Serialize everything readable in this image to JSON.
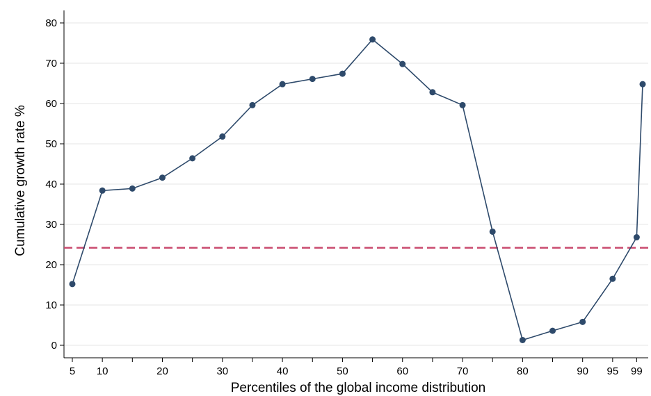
{
  "chart_data": {
    "type": "line",
    "xlabel": "Percentiles of the global income distribution",
    "ylabel": "Cumulative growth rate %",
    "xlim": [
      4,
      100
    ],
    "ylim": [
      0,
      80
    ],
    "yticks": [
      0,
      10,
      20,
      30,
      40,
      50,
      60,
      70,
      80
    ],
    "xticks": [
      {
        "value": 5,
        "label": "5"
      },
      {
        "value": 10,
        "label": "10"
      },
      {
        "value": 15,
        "label": ""
      },
      {
        "value": 20,
        "label": "20"
      },
      {
        "value": 25,
        "label": ""
      },
      {
        "value": 30,
        "label": "30"
      },
      {
        "value": 35,
        "label": ""
      },
      {
        "value": 40,
        "label": "40"
      },
      {
        "value": 45,
        "label": ""
      },
      {
        "value": 50,
        "label": "50"
      },
      {
        "value": 55,
        "label": ""
      },
      {
        "value": 60,
        "label": "60"
      },
      {
        "value": 65,
        "label": ""
      },
      {
        "value": 70,
        "label": "70"
      },
      {
        "value": 75,
        "label": ""
      },
      {
        "value": 80,
        "label": "80"
      },
      {
        "value": 85,
        "label": ""
      },
      {
        "value": 90,
        "label": "90"
      },
      {
        "value": 95,
        "label": "95"
      },
      {
        "value": 99,
        "label": "99"
      }
    ],
    "grid": "horizontal",
    "series": [
      {
        "color": "#2e4a6b",
        "points": [
          {
            "x": 5,
            "y": 15.2
          },
          {
            "x": 10,
            "y": 38.4
          },
          {
            "x": 15,
            "y": 38.9
          },
          {
            "x": 20,
            "y": 41.6
          },
          {
            "x": 25,
            "y": 46.4
          },
          {
            "x": 30,
            "y": 51.8
          },
          {
            "x": 35,
            "y": 59.6
          },
          {
            "x": 40,
            "y": 64.8
          },
          {
            "x": 45,
            "y": 66.1
          },
          {
            "x": 50,
            "y": 67.4
          },
          {
            "x": 55,
            "y": 75.9
          },
          {
            "x": 60,
            "y": 69.8
          },
          {
            "x": 65,
            "y": 62.8
          },
          {
            "x": 70,
            "y": 59.6
          },
          {
            "x": 75,
            "y": 28.2
          },
          {
            "x": 80,
            "y": 1.3
          },
          {
            "x": 85,
            "y": 3.6
          },
          {
            "x": 90,
            "y": 5.8
          },
          {
            "x": 95,
            "y": 16.5
          },
          {
            "x": 99,
            "y": 26.8
          },
          {
            "x": 100,
            "y": 64.8
          }
        ]
      }
    ],
    "reference_line": {
      "y": 24.2,
      "style": "dashed",
      "color": "#c94a6e"
    }
  }
}
